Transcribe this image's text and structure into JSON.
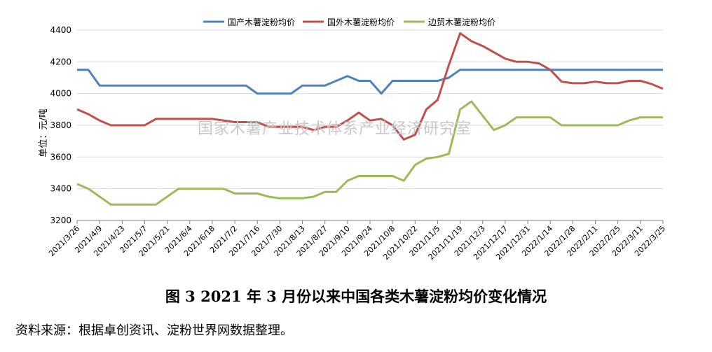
{
  "chart_data": {
    "type": "line",
    "ylabel": "单位：元/吨",
    "ylim": [
      3200,
      4400
    ],
    "yticks": [
      3200,
      3400,
      3600,
      3800,
      4000,
      4200,
      4400
    ],
    "grid": true,
    "legend_position": "top",
    "x_tick_labels": [
      "2021/3/26",
      "2021/4/9",
      "2021/4/23",
      "2021/5/7",
      "2021/5/21",
      "2021/6/4",
      "2021/6/18",
      "2021/7/2",
      "2021/7/16",
      "2021/7/30",
      "2021/8/13",
      "2021/8/27",
      "2021/9/10",
      "2021/9/24",
      "2021/10/8",
      "2021/10/22",
      "2021/11/5",
      "2021/11/19",
      "2021/12/3",
      "2021/12/17",
      "2021/12/31",
      "2022/1/14",
      "2022/1/28",
      "2022/2/11",
      "2022/2/25",
      "2022/3/11",
      "2022/3/25"
    ],
    "series": [
      {
        "name": "国产木薯淀粉均价",
        "color": "#4f81bd",
        "points": [
          [
            0,
            4150
          ],
          [
            0.5,
            4150
          ],
          [
            1,
            4050
          ],
          [
            2,
            4050
          ],
          [
            3,
            4050
          ],
          [
            4,
            4050
          ],
          [
            5,
            4050
          ],
          [
            6,
            4050
          ],
          [
            7,
            4050
          ],
          [
            7.5,
            4050
          ],
          [
            8,
            4000
          ],
          [
            9,
            4000
          ],
          [
            9.5,
            4000
          ],
          [
            10,
            4050
          ],
          [
            11,
            4050
          ],
          [
            11.5,
            4080
          ],
          [
            12,
            4110
          ],
          [
            12.5,
            4080
          ],
          [
            13,
            4080
          ],
          [
            13.5,
            4000
          ],
          [
            14,
            4080
          ],
          [
            15,
            4080
          ],
          [
            15.5,
            4080
          ],
          [
            16,
            4080
          ],
          [
            16.5,
            4100
          ],
          [
            17,
            4150
          ],
          [
            18,
            4150
          ],
          [
            19,
            4150
          ],
          [
            20,
            4150
          ],
          [
            21,
            4150
          ],
          [
            22,
            4150
          ],
          [
            23,
            4150
          ],
          [
            24,
            4150
          ],
          [
            25,
            4150
          ],
          [
            26,
            4150
          ]
        ]
      },
      {
        "name": "国外木薯淀粉均价",
        "color": "#c0504d",
        "points": [
          [
            0,
            3900
          ],
          [
            0.5,
            3870
          ],
          [
            1,
            3830
          ],
          [
            1.5,
            3800
          ],
          [
            2,
            3800
          ],
          [
            3,
            3800
          ],
          [
            3.5,
            3840
          ],
          [
            4,
            3840
          ],
          [
            5,
            3840
          ],
          [
            6,
            3840
          ],
          [
            7,
            3820
          ],
          [
            8,
            3820
          ],
          [
            8.5,
            3790
          ],
          [
            9,
            3790
          ],
          [
            10,
            3790
          ],
          [
            10.5,
            3770
          ],
          [
            11,
            3790
          ],
          [
            11.5,
            3790
          ],
          [
            12,
            3830
          ],
          [
            12.5,
            3880
          ],
          [
            13,
            3830
          ],
          [
            13.5,
            3840
          ],
          [
            14,
            3800
          ],
          [
            14.5,
            3710
          ],
          [
            15,
            3740
          ],
          [
            15.5,
            3900
          ],
          [
            16,
            3960
          ],
          [
            16.5,
            4180
          ],
          [
            17,
            4380
          ],
          [
            17.5,
            4330
          ],
          [
            18,
            4300
          ],
          [
            18.5,
            4260
          ],
          [
            19,
            4220
          ],
          [
            19.5,
            4200
          ],
          [
            20,
            4200
          ],
          [
            20.5,
            4190
          ],
          [
            21,
            4150
          ],
          [
            21.5,
            4075
          ],
          [
            22,
            4065
          ],
          [
            22.5,
            4065
          ],
          [
            23,
            4075
          ],
          [
            23.5,
            4065
          ],
          [
            24,
            4065
          ],
          [
            24.5,
            4080
          ],
          [
            25,
            4080
          ],
          [
            25.5,
            4060
          ],
          [
            26,
            4030
          ]
        ]
      },
      {
        "name": "边贸木薯淀粉均价",
        "color": "#9bbb59",
        "points": [
          [
            0,
            3430
          ],
          [
            0.5,
            3400
          ],
          [
            1,
            3350
          ],
          [
            1.5,
            3300
          ],
          [
            2,
            3300
          ],
          [
            3,
            3300
          ],
          [
            3.5,
            3300
          ],
          [
            4,
            3350
          ],
          [
            4.5,
            3400
          ],
          [
            5,
            3400
          ],
          [
            6,
            3400
          ],
          [
            6.5,
            3400
          ],
          [
            7,
            3370
          ],
          [
            8,
            3370
          ],
          [
            8.5,
            3350
          ],
          [
            9,
            3340
          ],
          [
            10,
            3340
          ],
          [
            10.5,
            3350
          ],
          [
            11,
            3380
          ],
          [
            11.5,
            3380
          ],
          [
            12,
            3450
          ],
          [
            12.5,
            3480
          ],
          [
            13,
            3480
          ],
          [
            14,
            3480
          ],
          [
            14.5,
            3450
          ],
          [
            15,
            3550
          ],
          [
            15.5,
            3590
          ],
          [
            16,
            3600
          ],
          [
            16.5,
            3620
          ],
          [
            17,
            3900
          ],
          [
            17.5,
            3950
          ],
          [
            18,
            3860
          ],
          [
            18.5,
            3770
          ],
          [
            19,
            3800
          ],
          [
            19.5,
            3850
          ],
          [
            20,
            3850
          ],
          [
            21,
            3850
          ],
          [
            21.5,
            3800
          ],
          [
            22,
            3800
          ],
          [
            23,
            3800
          ],
          [
            24,
            3800
          ],
          [
            24.5,
            3830
          ],
          [
            25,
            3850
          ],
          [
            26,
            3850
          ]
        ]
      }
    ]
  },
  "watermark": "国家木薯产业技术体系产业经济研究室",
  "caption": "图 3    2021 年 3 月份以来中国各类木薯淀粉均价变化情况",
  "source": "资料来源：根据卓创资讯、淀粉世界网数据整理。"
}
